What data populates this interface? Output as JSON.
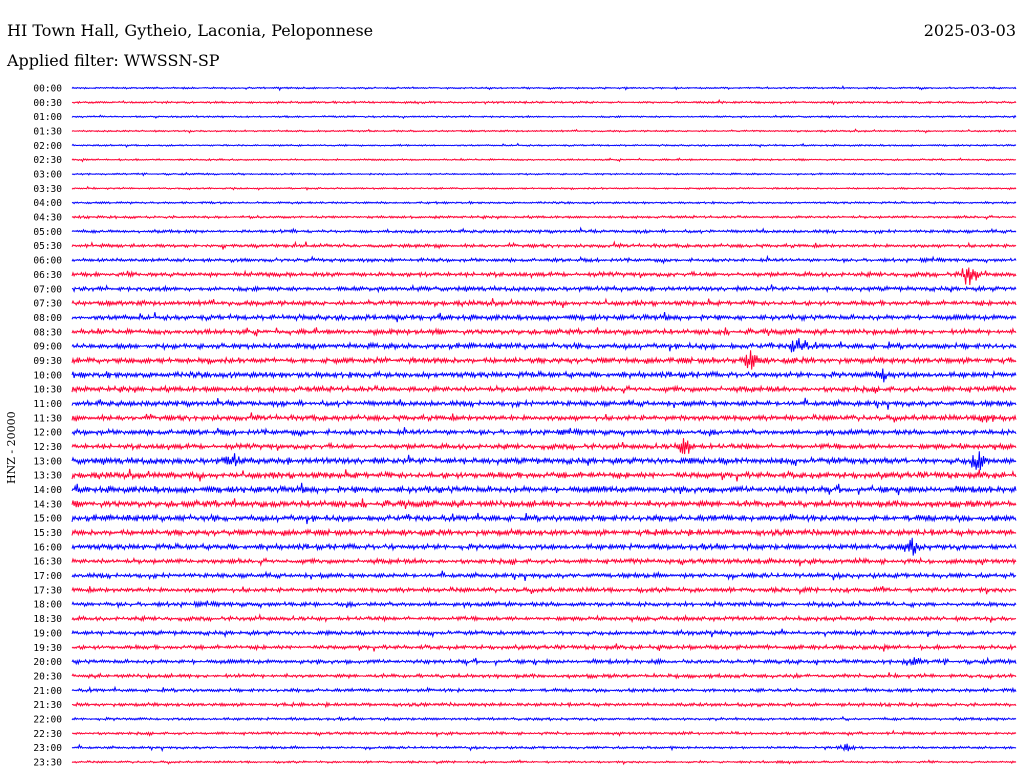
{
  "header": {
    "station": "HI Town Hall, Gytheio, Laconia, Peloponnese",
    "date": "2025-03-03",
    "filter": "Applied filter: WWSSN-SP"
  },
  "colors": {
    "even_trace": "#0000ff",
    "odd_trace": "#ff0033"
  },
  "chart_data": {
    "type": "line",
    "title": "HI Town Hall, Gytheio, Laconia, Peloponnese",
    "subtitle": "Applied filter: WWSSN-SP",
    "ylabel": "HNZ - 20000",
    "tick_labels": [
      "00:00",
      "00:30",
      "01:00",
      "01:30",
      "02:00",
      "02:30",
      "03:00",
      "03:30",
      "04:00",
      "04:30",
      "05:00",
      "05:30",
      "06:00",
      "06:30",
      "07:00",
      "07:30",
      "08:00",
      "08:30",
      "09:00",
      "09:30",
      "10:00",
      "10:30",
      "11:00",
      "11:30",
      "12:00",
      "12:30",
      "13:00",
      "13:30",
      "14:00",
      "14:30",
      "15:00",
      "15:30",
      "16:00",
      "16:30",
      "17:00",
      "17:30",
      "18:00",
      "18:30",
      "19:00",
      "19:30",
      "20:00",
      "20:30",
      "21:00",
      "21:30",
      "22:00",
      "22:30",
      "23:00",
      "23:30"
    ],
    "row_amplitude": [
      1.0,
      1.2,
      1.0,
      1.0,
      1.0,
      1.0,
      1.0,
      1.0,
      1.2,
      1.5,
      1.8,
      2.0,
      2.0,
      2.6,
      2.6,
      2.8,
      3.0,
      3.0,
      3.2,
      3.3,
      3.3,
      3.2,
      3.0,
      3.0,
      3.0,
      3.0,
      3.6,
      3.6,
      3.8,
      3.8,
      3.6,
      3.4,
      3.2,
      2.8,
      2.6,
      2.6,
      2.6,
      2.4,
      2.4,
      2.4,
      2.4,
      2.2,
      2.0,
      2.0,
      1.6,
      1.6,
      1.4,
      1.2
    ],
    "events": [
      {
        "row": 13,
        "x": 0.95,
        "amp": 12
      },
      {
        "row": 18,
        "x": 0.77,
        "amp": 10
      },
      {
        "row": 19,
        "x": 0.72,
        "amp": 10
      },
      {
        "row": 20,
        "x": 0.86,
        "amp": 6
      },
      {
        "row": 23,
        "x": 0.97,
        "amp": 6
      },
      {
        "row": 25,
        "x": 0.65,
        "amp": 9
      },
      {
        "row": 26,
        "x": 0.96,
        "amp": 9
      },
      {
        "row": 26,
        "x": 0.17,
        "amp": 6
      },
      {
        "row": 32,
        "x": 0.89,
        "amp": 7
      },
      {
        "row": 40,
        "x": 0.89,
        "amp": 4
      },
      {
        "row": 46,
        "x": 0.82,
        "amp": 4
      }
    ]
  }
}
